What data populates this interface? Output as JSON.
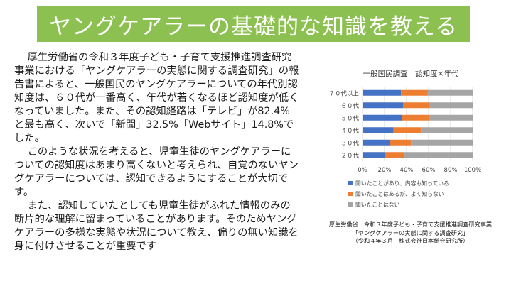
{
  "banner": {
    "title": "ヤングケアラーの基礎的な知識を教える"
  },
  "body": {
    "paragraphs": [
      "厚生労働省の令和３年度子ども・子育て支援推進調査研究事業における「ヤングケアラーの実態に関する調査研究」の報告書によると、一般国民のヤングケアラーについての年代別認知度は、６０代が一番高く、年代が若くなるほど認知度が低くなっていました。また、その認知経路は「テレビ」が82.4%と最も高く、次いで「新聞」32.5%「Webサイト」14.8%でした。",
      "このような状況を考えると、児童生徒のヤングケアラーについての認知度はあまり高くないと考えられ、自覚のないヤングケアラーについては、認知できるようにすることが大切です。",
      "また、認知していたとしても児童生徒がふれた情報のみの断片的な理解に留まっていることがあります。そのためヤングケアラーの多様な実態や状況について教え、偏りの無い知識を身に付けさせることが重要です"
    ]
  },
  "chart_data": {
    "type": "bar",
    "orientation": "horizontal",
    "stacked": true,
    "percent": true,
    "title": "一般国民調査　認知度×年代",
    "categories": [
      "７０代以上",
      "６０代",
      "５０代",
      "４０代",
      "３０代",
      "２０代"
    ],
    "series": [
      {
        "name": "聞いたことがあり、内容も知っている",
        "color": "#4472c4",
        "values": [
          35,
          37,
          36,
          28,
          25,
          20
        ]
      },
      {
        "name": "聞いたことはあるが、よく知らない",
        "color": "#ed7d31",
        "values": [
          24,
          24,
          24,
          25,
          19,
          18
        ]
      },
      {
        "name": "聞いたことはない",
        "color": "#a5a5a5",
        "values": [
          41,
          39,
          40,
          47,
          56,
          62
        ]
      }
    ],
    "xticks": [
      "0%",
      "20%",
      "40%",
      "60%",
      "80%",
      "100%"
    ],
    "xlim": [
      0,
      100
    ],
    "legend": "bottom",
    "grid": true
  },
  "source": {
    "lines": [
      "厚生労働省　令和３年度子ども・子育て支援推進調査研究事業",
      "「ヤングケアラーの実態に関する調査研究」",
      "（令和４年３月　株式会社日本総合研究所）"
    ]
  }
}
